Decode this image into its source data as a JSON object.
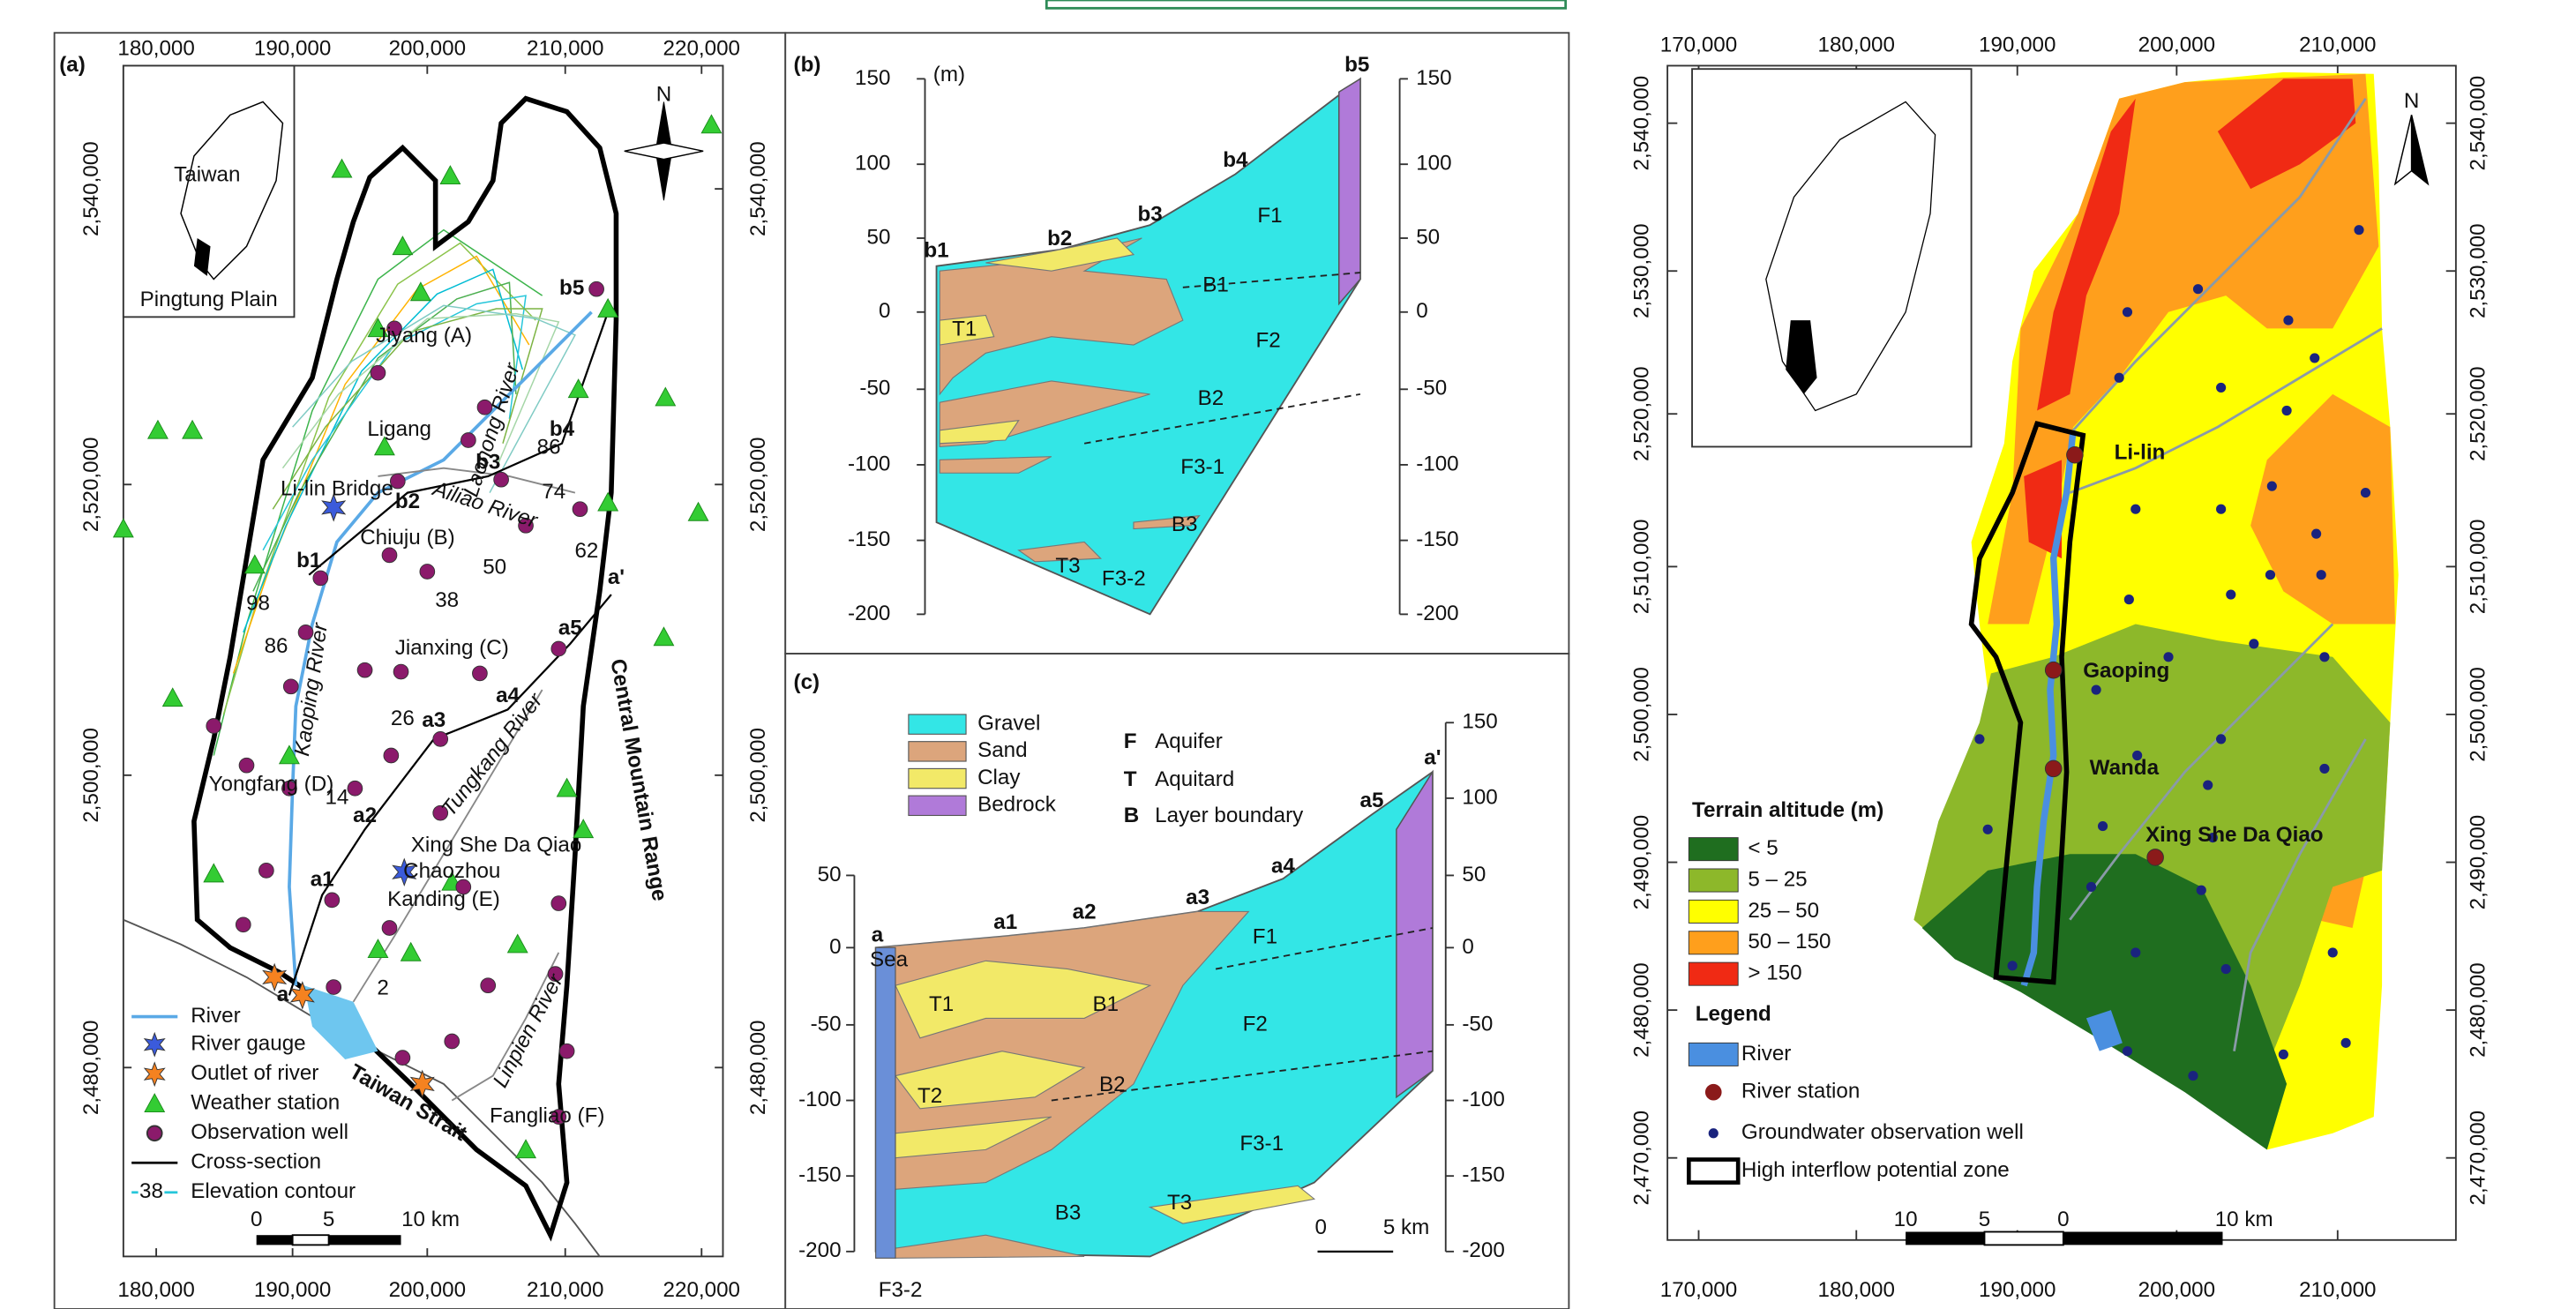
{
  "panel_a": {
    "label": "(a)",
    "x_ticks": [
      "180,000",
      "190,000",
      "200,000",
      "210,000",
      "220,000"
    ],
    "y_ticks": [
      "2,540,000",
      "2,520,000",
      "2,500,000",
      "2,480,000"
    ],
    "inset": [
      "Taiwan",
      "Pingtung Plain"
    ],
    "north": "N",
    "places": [
      "Jiyang (A)",
      "Ligang",
      "Li-lin Bridge",
      "Chiuju (B)",
      "Jianxing (C)",
      "Yongfang (D)",
      "Xing She Da Qiao",
      "Chaozhou",
      "Kanding (E)",
      "Fangliao (F)"
    ],
    "rivers": [
      "Laonong River",
      "Ailiao River",
      "Kaoping River",
      "Tungkang River",
      "Linpien River"
    ],
    "regions": [
      "Central Mountain Range",
      "Taiwan Strait"
    ],
    "section_points": [
      "b1",
      "b2",
      "b3",
      "b4",
      "b5",
      "a",
      "a1",
      "a2",
      "a3",
      "a4",
      "a5",
      "a'"
    ],
    "contours": [
      "86",
      "74",
      "62",
      "50",
      "38",
      "26",
      "14",
      "2",
      "98",
      "86"
    ],
    "legend": [
      "River",
      "River gauge",
      "Outlet of river",
      "Weather station",
      "Observation well",
      "Cross-section",
      "Elevation contour"
    ],
    "legend_contour": "38",
    "scale": [
      "0",
      "5",
      "10 km"
    ]
  },
  "panel_b": {
    "label": "(b)",
    "unit": "(m)",
    "y_ticks": [
      "150",
      "100",
      "50",
      "0",
      "-50",
      "-100",
      "-150",
      "-200"
    ],
    "points": [
      "b1",
      "b2",
      "b3",
      "b4",
      "b5"
    ],
    "units": [
      "F1",
      "B1",
      "F2",
      "B2",
      "F3-1",
      "B3",
      "F3-2",
      "T1",
      "T3"
    ]
  },
  "panel_c": {
    "label": "(c)",
    "legend": [
      "Gravel",
      "Sand",
      "Clay",
      "Bedrock"
    ],
    "codes": [
      {
        "letter": "F",
        "meaning": "Aquifer"
      },
      {
        "letter": "T",
        "meaning": "Aquitard"
      },
      {
        "letter": "B",
        "meaning": "Layer boundary"
      }
    ],
    "y_ticks_left": [
      "50",
      "0",
      "-50",
      "-100",
      "-150",
      "-200"
    ],
    "y_ticks_right": [
      "150",
      "100",
      "50",
      "0",
      "-50",
      "-100",
      "-150",
      "-200"
    ],
    "points": [
      "a",
      "a1",
      "a2",
      "a3",
      "a4",
      "a5",
      "a'"
    ],
    "sea": "Sea",
    "units": [
      "F1",
      "B1",
      "F2",
      "B2",
      "F3-1",
      "B3",
      "T1",
      "T2",
      "T3",
      "F3-2"
    ],
    "scale": [
      "0",
      "5 km"
    ]
  },
  "panel_d": {
    "x_ticks": [
      "170,000",
      "180,000",
      "190,000",
      "200,000",
      "210,000"
    ],
    "y_ticks": [
      "2,540,000",
      "2,530,000",
      "2,520,000",
      "2,510,000",
      "2,500,000",
      "2,490,000",
      "2,480,000",
      "2,470,000"
    ],
    "north": "N",
    "stations": [
      "Li-lin",
      "Gaoping",
      "Wanda",
      "Xing She Da Qiao"
    ],
    "terrain_title": "Terrain altitude (m)",
    "terrain_classes": [
      "< 5",
      "5  –  25",
      "25 –  50",
      "50 – 150",
      "> 150"
    ],
    "legend_title": "Legend",
    "legend": [
      "River",
      "River station",
      "Groundwater observation well",
      "High interflow potential zone"
    ],
    "scale": [
      "10",
      "5",
      "0",
      "10 km"
    ]
  }
}
